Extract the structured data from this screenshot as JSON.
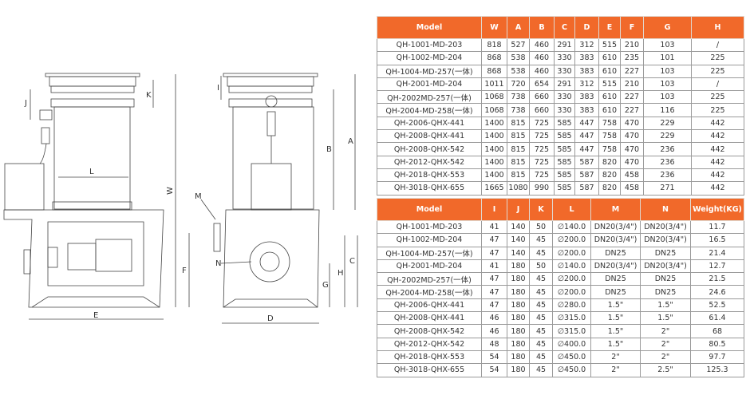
{
  "drawing": {
    "labels": {
      "W": "W",
      "A": "A",
      "B": "B",
      "C": "C",
      "D": "D",
      "E": "E",
      "F": "F",
      "G": "G",
      "H": "H",
      "I": "I",
      "J": "J",
      "K": "K",
      "L": "L",
      "M": "M",
      "N": "N"
    }
  },
  "table1": {
    "headers": [
      "Model",
      "W",
      "A",
      "B",
      "C",
      "D",
      "E",
      "F",
      "G",
      "H"
    ],
    "rows": [
      [
        "QH-1001-MD-203",
        "818",
        "527",
        "460",
        "291",
        "312",
        "515",
        "210",
        "103",
        "/"
      ],
      [
        "QH-1002-MD-204",
        "868",
        "538",
        "460",
        "330",
        "383",
        "610",
        "235",
        "101",
        "225"
      ],
      [
        "QH-1004-MD-257(一体)",
        "868",
        "538",
        "460",
        "330",
        "383",
        "610",
        "227",
        "103",
        "225"
      ],
      [
        "QH-2001-MD-204",
        "1011",
        "720",
        "654",
        "291",
        "312",
        "515",
        "210",
        "103",
        "/"
      ],
      [
        "QH-2002MD-257(一体)",
        "1068",
        "738",
        "660",
        "330",
        "383",
        "610",
        "227",
        "103",
        "225"
      ],
      [
        "QH-2004-MD-258(一体)",
        "1068",
        "738",
        "660",
        "330",
        "383",
        "610",
        "227",
        "116",
        "225"
      ],
      [
        "QH-2006-QHX-441",
        "1400",
        "815",
        "725",
        "585",
        "447",
        "758",
        "470",
        "229",
        "442"
      ],
      [
        "QH-2008-QHX-441",
        "1400",
        "815",
        "725",
        "585",
        "447",
        "758",
        "470",
        "229",
        "442"
      ],
      [
        "QH-2008-QHX-542",
        "1400",
        "815",
        "725",
        "585",
        "447",
        "758",
        "470",
        "236",
        "442"
      ],
      [
        "QH-2012-QHX-542",
        "1400",
        "815",
        "725",
        "585",
        "587",
        "820",
        "470",
        "236",
        "442"
      ],
      [
        "QH-2018-QHX-553",
        "1400",
        "815",
        "725",
        "585",
        "587",
        "820",
        "458",
        "236",
        "442"
      ],
      [
        "QH-3018-QHX-655",
        "1665",
        "1080",
        "990",
        "585",
        "587",
        "820",
        "458",
        "271",
        "442"
      ]
    ]
  },
  "table2": {
    "headers": [
      "Model",
      "I",
      "J",
      "K",
      "L",
      "M",
      "N",
      "Weight(KG)"
    ],
    "rows": [
      [
        "QH-1001-MD-203",
        "41",
        "140",
        "50",
        "∅140.0",
        "DN20(3/4\")",
        "DN20(3/4\")",
        "11.7"
      ],
      [
        "QH-1002-MD-204",
        "47",
        "140",
        "45",
        "∅200.0",
        "DN20(3/4\")",
        "DN20(3/4\")",
        "16.5"
      ],
      [
        "QH-1004-MD-257(一体)",
        "47",
        "140",
        "45",
        "∅200.0",
        "DN25",
        "DN25",
        "21.4"
      ],
      [
        "QH-2001-MD-204",
        "41",
        "180",
        "50",
        "∅140.0",
        "DN20(3/4\")",
        "DN20(3/4\")",
        "12.7"
      ],
      [
        "QH-2002MD-257(一体)",
        "47",
        "180",
        "45",
        "∅200.0",
        "DN25",
        "DN25",
        "21.5"
      ],
      [
        "QH-2004-MD-258(一体)",
        "47",
        "180",
        "45",
        "∅200.0",
        "DN25",
        "DN25",
        "24.6"
      ],
      [
        "QH-2006-QHX-441",
        "47",
        "180",
        "45",
        "∅280.0",
        "1.5\"",
        "1.5\"",
        "52.5"
      ],
      [
        "QH-2008-QHX-441",
        "46",
        "180",
        "45",
        "∅315.0",
        "1.5\"",
        "1.5\"",
        "61.4"
      ],
      [
        "QH-2008-QHX-542",
        "46",
        "180",
        "45",
        "∅315.0",
        "1.5\"",
        "2\"",
        "68"
      ],
      [
        "QH-2012-QHX-542",
        "48",
        "180",
        "45",
        "∅400.0",
        "1.5\"",
        "2\"",
        "80.5"
      ],
      [
        "QH-2018-QHX-553",
        "54",
        "180",
        "45",
        "∅450.0",
        "2\"",
        "2\"",
        "97.7"
      ],
      [
        "QH-3018-QHX-655",
        "54",
        "180",
        "45",
        "∅450.0",
        "2\"",
        "2.5\"",
        "125.3"
      ]
    ]
  },
  "colors": {
    "header": "#f1692a"
  }
}
